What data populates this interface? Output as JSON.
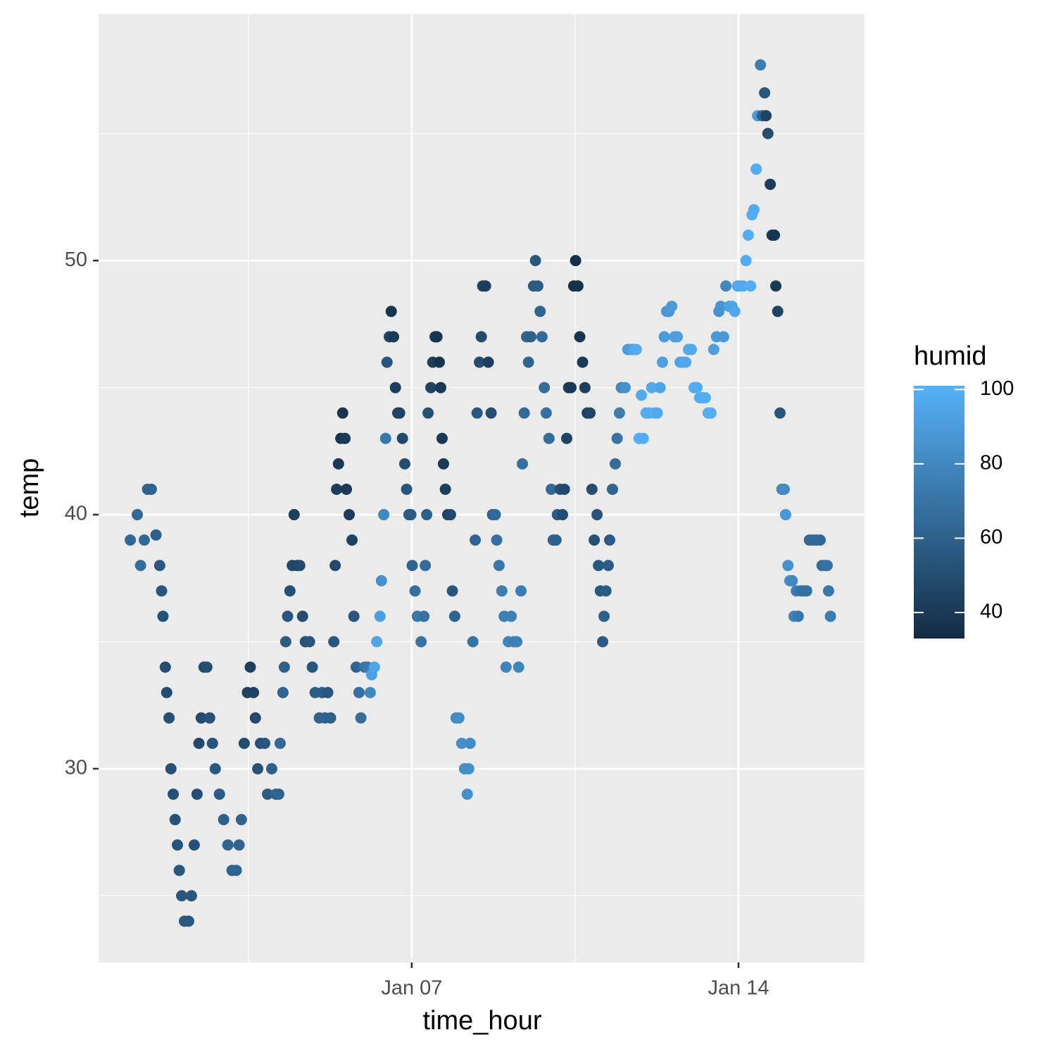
{
  "chart_data": {
    "type": "scatter",
    "x_label": "time_hour",
    "y_label": "temp",
    "xlim": [
      0.29,
      16.7
    ],
    "ylim": [
      22.38,
      59.7
    ],
    "xticks": [
      {
        "value": 7,
        "label": "Jan 07"
      },
      {
        "value": 14,
        "label": "Jan 14"
      }
    ],
    "yticks": [
      30,
      40,
      50
    ],
    "x_minor_grid": [
      3.5,
      10.5
    ],
    "y_minor_grid": [
      25,
      35,
      45,
      55
    ],
    "grid": true,
    "x": [
      0.97,
      1.12,
      1.19,
      1.27,
      1.34,
      1.42,
      1.52,
      1.6,
      1.64,
      1.67,
      1.72,
      1.75,
      1.8,
      1.84,
      1.89,
      1.93,
      1.98,
      2.02,
      2.07,
      2.13,
      2.22,
      2.28,
      2.34,
      2.4,
      2.44,
      2.49,
      2.55,
      2.61,
      2.67,
      2.73,
      2.79,
      2.88,
      2.97,
      3.06,
      3.15,
      3.24,
      3.3,
      3.35,
      3.41,
      3.48,
      3.54,
      3.61,
      3.65,
      3.7,
      3.76,
      3.85,
      3.91,
      4.0,
      4.09,
      4.15,
      4.18,
      4.24,
      4.27,
      4.3,
      4.34,
      4.39,
      4.44,
      4.48,
      4.54,
      4.6,
      4.66,
      4.72,
      4.81,
      4.87,
      4.93,
      5.02,
      5.08,
      5.14,
      5.2,
      5.26,
      5.33,
      5.36,
      5.39,
      5.43,
      5.48,
      5.52,
      5.57,
      5.6,
      5.66,
      5.72,
      5.76,
      5.81,
      5.87,
      5.91,
      5.99,
      6.05,
      6.11,
      6.14,
      6.2,
      6.25,
      6.32,
      6.35,
      6.4,
      6.44,
      6.47,
      6.52,
      6.56,
      6.61,
      6.65,
      6.7,
      6.74,
      6.8,
      6.85,
      6.89,
      6.94,
      6.98,
      7.01,
      7.07,
      7.12,
      7.2,
      7.26,
      7.29,
      7.32,
      7.35,
      7.41,
      7.45,
      7.5,
      7.54,
      7.59,
      7.62,
      7.65,
      7.68,
      7.72,
      7.77,
      7.83,
      7.87,
      7.92,
      7.95,
      8.01,
      8.07,
      8.13,
      8.19,
      8.22,
      8.25,
      8.31,
      8.36,
      8.4,
      8.45,
      8.49,
      8.52,
      8.58,
      8.64,
      8.7,
      8.73,
      8.79,
      8.82,
      8.87,
      8.93,
      8.98,
      9.02,
      9.07,
      9.13,
      9.19,
      9.25,
      9.29,
      9.34,
      9.37,
      9.41,
      9.46,
      9.5,
      9.55,
      9.61,
      9.65,
      9.7,
      9.75,
      9.79,
      9.84,
      9.88,
      9.94,
      9.99,
      10.03,
      10.09,
      10.12,
      10.18,
      10.23,
      10.27,
      10.32,
      10.36,
      10.41,
      10.47,
      10.51,
      10.56,
      10.6,
      10.66,
      10.71,
      10.76,
      10.82,
      10.86,
      10.91,
      10.97,
      11.0,
      11.04,
      11.09,
      11.12,
      11.16,
      11.21,
      11.24,
      11.3,
      11.36,
      11.4,
      11.45,
      11.49,
      11.57,
      11.63,
      11.69,
      11.75,
      11.81,
      11.87,
      11.92,
      11.96,
      12.02,
      12.08,
      12.14,
      12.2,
      12.26,
      12.32,
      12.37,
      12.41,
      12.46,
      12.51,
      12.57,
      12.63,
      12.69,
      12.75,
      12.81,
      12.87,
      12.93,
      12.99,
      13.05,
      13.11,
      13.17,
      13.23,
      13.29,
      13.35,
      13.41,
      13.47,
      13.53,
      13.58,
      13.62,
      13.68,
      13.73,
      13.8,
      13.86,
      13.92,
      13.98,
      14.04,
      14.1,
      14.16,
      14.21,
      14.26,
      14.29,
      14.33,
      14.38,
      14.41,
      14.47,
      14.51,
      14.56,
      14.59,
      14.63,
      14.68,
      14.72,
      14.77,
      14.8,
      14.84,
      14.89,
      14.93,
      14.98,
      15.01,
      15.06,
      15.1,
      15.15,
      15.19,
      15.24,
      15.28,
      15.34,
      15.4,
      15.46,
      15.52,
      15.6,
      15.67,
      15.75,
      15.79,
      15.85,
      15.9,
      15.93,
      15.97
    ],
    "values": [
      39,
      40,
      38,
      39,
      41,
      41,
      39.2,
      38,
      37,
      36,
      34,
      33,
      32,
      30,
      29,
      28,
      27,
      26,
      25,
      24,
      24,
      25,
      27,
      29,
      31,
      32,
      34,
      34,
      32,
      31,
      30,
      29,
      28,
      27,
      26,
      26,
      27,
      28,
      31,
      33,
      34,
      33,
      32,
      30,
      31,
      31,
      29,
      30,
      29,
      29,
      31,
      33,
      34,
      35,
      36,
      37,
      38,
      40,
      38,
      38,
      36,
      35,
      35,
      34,
      33,
      32,
      33,
      32,
      33,
      32,
      35,
      38,
      41,
      42,
      43,
      44,
      43,
      41,
      40,
      39,
      36,
      34,
      33,
      32,
      34,
      34,
      33,
      33.7,
      34,
      35,
      36,
      37.4,
      40,
      43,
      46,
      47,
      48,
      47,
      45,
      44,
      44,
      43,
      42,
      41,
      40,
      40,
      38,
      37,
      36,
      35,
      36,
      38,
      40,
      44,
      45,
      46,
      47,
      47,
      46,
      45,
      43,
      42,
      41,
      40,
      40,
      37,
      36,
      32,
      32,
      31,
      30,
      29,
      30,
      31,
      35,
      39,
      44,
      46,
      47,
      49,
      49,
      46,
      44,
      40,
      40,
      39,
      38,
      37,
      36,
      34,
      35,
      36,
      35,
      35,
      34,
      37,
      42,
      44,
      47,
      46,
      47,
      49,
      50,
      49,
      48,
      47,
      45,
      44,
      43,
      41,
      39,
      39,
      40,
      41,
      40,
      41,
      43,
      45,
      45,
      49,
      50,
      49,
      47,
      46,
      45,
      44,
      44,
      41,
      39,
      40,
      38,
      37,
      35,
      36,
      37,
      38,
      39,
      41,
      42,
      43,
      44,
      45,
      45,
      46.5,
      46.5,
      46.5,
      46.5,
      43,
      44.7,
      43,
      44,
      44,
      45,
      44,
      44,
      45,
      46,
      47,
      48,
      48,
      48.2,
      47,
      47,
      46,
      46,
      46,
      46.5,
      46.5,
      45,
      45,
      44.6,
      44.6,
      44.6,
      44,
      44,
      46.5,
      47,
      48,
      48.2,
      47,
      49,
      48.2,
      48.2,
      48,
      49,
      49,
      49,
      50,
      51,
      49,
      51.8,
      52,
      53.6,
      55.7,
      57.7,
      55.7,
      56.6,
      55.7,
      55,
      53,
      51,
      51,
      49,
      48,
      44,
      41,
      41,
      40,
      38,
      37.4,
      37.4,
      36,
      37,
      36,
      37,
      37,
      37,
      39,
      39,
      39,
      39,
      38,
      38,
      38,
      37,
      36
    ],
    "color_values": [
      64,
      64,
      66,
      64,
      62,
      62,
      60,
      56,
      55,
      53,
      50,
      50,
      52,
      52,
      52,
      52,
      54,
      55,
      55,
      56,
      56,
      55,
      52,
      50,
      48,
      48,
      48,
      50,
      52,
      54,
      56,
      58,
      60,
      62,
      62,
      62,
      62,
      62,
      50,
      45,
      42,
      45,
      48,
      52,
      52,
      55,
      58,
      60,
      62,
      62,
      64,
      62,
      60,
      58,
      55,
      52,
      48,
      42,
      45,
      48,
      50,
      52,
      55,
      55,
      58,
      60,
      58,
      62,
      55,
      60,
      55,
      48,
      42,
      40,
      38,
      38,
      40,
      40,
      42,
      45,
      55,
      62,
      68,
      66,
      70,
      72,
      80,
      92,
      95,
      95,
      92,
      85,
      80,
      72,
      55,
      45,
      38,
      40,
      42,
      45,
      45,
      48,
      50,
      55,
      58,
      58,
      62,
      68,
      72,
      70,
      68,
      65,
      60,
      52,
      45,
      42,
      40,
      38,
      38,
      40,
      40,
      40,
      42,
      45,
      48,
      55,
      62,
      80,
      82,
      84,
      84,
      84,
      84,
      82,
      70,
      62,
      55,
      50,
      48,
      45,
      42,
      42,
      50,
      62,
      65,
      68,
      72,
      75,
      76,
      78,
      78,
      76,
      76,
      76,
      78,
      75,
      68,
      65,
      62,
      62,
      60,
      58,
      55,
      58,
      62,
      65,
      66,
      68,
      66,
      64,
      62,
      60,
      58,
      52,
      50,
      48,
      45,
      42,
      40,
      36,
      35,
      36,
      38,
      40,
      42,
      44,
      46,
      50,
      52,
      54,
      56,
      56,
      58,
      60,
      58,
      58,
      58,
      62,
      66,
      70,
      75,
      80,
      85,
      90,
      92,
      95,
      97,
      99,
      97,
      99,
      99,
      98,
      97,
      99,
      97,
      95,
      92,
      90,
      88,
      88,
      90,
      92,
      92,
      94,
      95,
      96,
      97,
      97,
      98,
      98,
      98,
      99,
      99,
      99,
      99,
      92,
      90,
      86,
      86,
      88,
      80,
      92,
      95,
      96,
      96,
      97,
      98,
      98,
      99,
      99,
      99,
      98,
      99,
      90,
      75,
      60,
      55,
      45,
      50,
      42,
      40,
      38,
      40,
      45,
      55,
      80,
      82,
      88,
      85,
      84,
      80,
      78,
      75,
      72,
      70,
      68,
      68,
      65,
      64,
      64,
      64,
      66,
      68,
      70,
      72,
      74
    ],
    "colorbar": {
      "title": "humid",
      "lim": [
        33,
        101
      ],
      "ticks": [
        40,
        60,
        80,
        100
      ],
      "low": "#132B43",
      "high": "#56B1F7"
    }
  }
}
